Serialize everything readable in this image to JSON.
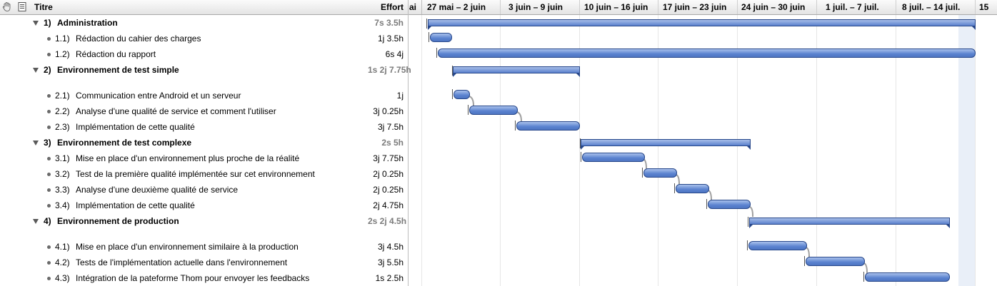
{
  "header": {
    "title_col": "Titre",
    "effort_col": "Effort",
    "prev_week_fragment": "ai",
    "weeks": [
      "27 mai – 2 juin",
      "3 juin – 9 juin",
      "10 juin – 16 juin",
      "17 juin – 23 juin",
      "24 juin – 30 juin",
      "1 juil. – 7 juil.",
      "8 juil. – 14 juil.",
      "15"
    ]
  },
  "tasks": [
    {
      "num": "1)",
      "title": "Administration",
      "effort": "7s 3.5h",
      "group": true
    },
    {
      "num": "1.1)",
      "title": "Rédaction du cahier des charges",
      "effort": "1j 3.5h",
      "group": false
    },
    {
      "num": "1.2)",
      "title": "Rédaction du rapport",
      "effort": "6s 4j",
      "group": false
    },
    {
      "num": "2)",
      "title": "Environnement de test simple",
      "effort": "1s 2j 7.75h",
      "group": true
    },
    {
      "num": "2.1)",
      "title": "Communication entre Android et un serveur",
      "effort": "1j",
      "group": false
    },
    {
      "num": "2.2)",
      "title": "Analyse d'une qualité de service et comment l'utiliser",
      "effort": "3j 0.25h",
      "group": false
    },
    {
      "num": "2.3)",
      "title": "Implémentation de cette qualité",
      "effort": "3j 7.5h",
      "group": false
    },
    {
      "num": "3)",
      "title": "Environnement de test complexe",
      "effort": "2s 5h",
      "group": true
    },
    {
      "num": "3.1)",
      "title": "Mise en place d'un environnement plus proche de la réalité",
      "effort": "3j 7.75h",
      "group": false
    },
    {
      "num": "3.2)",
      "title": "Test de la première qualité implémentée sur cet environnement",
      "effort": "2j 0.25h",
      "group": false
    },
    {
      "num": "3.3)",
      "title": "Analyse d'une deuxième qualité de service",
      "effort": "2j 0.25h",
      "group": false
    },
    {
      "num": "3.4)",
      "title": "Implémentation de cette qualité",
      "effort": "2j 4.75h",
      "group": false
    },
    {
      "num": "4)",
      "title": "Environnement de production",
      "effort": "2s 2j 4.5h",
      "group": true
    },
    {
      "num": "4.1)",
      "title": "Mise en place d'un environnement similaire à la production",
      "effort": "3j 4.5h",
      "group": false
    },
    {
      "num": "4.2)",
      "title": "Tests de l'implémentation actuelle dans l'environnement",
      "effort": "3j 5.5h",
      "group": false
    },
    {
      "num": "4.3)",
      "title": "Intégration de la pateforme Thom pour envoyer les feedbacks",
      "effort": "1s 2.5h",
      "group": false
    }
  ],
  "icons": {
    "header_left": "hand-icon",
    "header_right": "note-icon",
    "group": "disclosure-triangle-icon",
    "task": "bullet-icon"
  },
  "colors": {
    "bar": "#5a82cf",
    "bar_border": "#27478a",
    "today": "#e9eff8"
  }
}
